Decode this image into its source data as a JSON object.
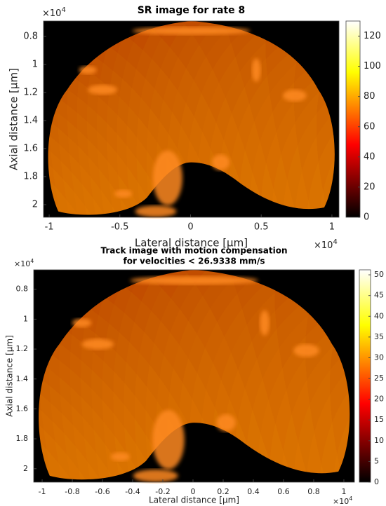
{
  "chart_data": [
    {
      "type": "heatmap",
      "title": "SR image for rate 8",
      "xlabel": "Lateral distance [μm]",
      "ylabel": "Axial distance [μm]",
      "x_multiplier": {
        "base": "×10",
        "power": "4"
      },
      "y_multiplier": {
        "base": "×10",
        "power": "4"
      },
      "xlim": [
        -1.04,
        1.05
      ],
      "xticks": [
        -1,
        -0.5,
        0,
        0.5,
        1
      ],
      "ylim": [
        0.69,
        2.09
      ],
      "yticks": [
        0.8,
        1,
        1.2,
        1.4,
        1.6,
        1.8,
        2
      ],
      "colormap": "hot",
      "clim": [
        0,
        130
      ],
      "colorbar_ticks": [
        0,
        20,
        40,
        60,
        80,
        100,
        120
      ]
    },
    {
      "type": "heatmap",
      "title": [
        "Track image with motion compensation",
        "for velocities < 26.9338 mm/s"
      ],
      "xlabel": "Lateral distance [μm]",
      "ylabel": "Axial distance [μm]",
      "x_multiplier": {
        "base": "×10",
        "power": "4"
      },
      "y_multiplier": {
        "base": "×10",
        "power": "4"
      },
      "xlim": [
        -1.056,
        1.07
      ],
      "xticks": [
        -1,
        -0.8,
        -0.6,
        -0.4,
        -0.2,
        0,
        0.2,
        0.4,
        0.6,
        0.8,
        1
      ],
      "ylim": [
        0.67,
        2.09
      ],
      "yticks": [
        0.8,
        1,
        1.2,
        1.4,
        1.6,
        1.8,
        2
      ],
      "colormap": "hot",
      "clim": [
        0,
        51.2
      ],
      "colorbar_ticks": [
        0,
        5,
        10,
        15,
        20,
        25,
        30,
        35,
        40,
        45,
        50
      ]
    }
  ]
}
